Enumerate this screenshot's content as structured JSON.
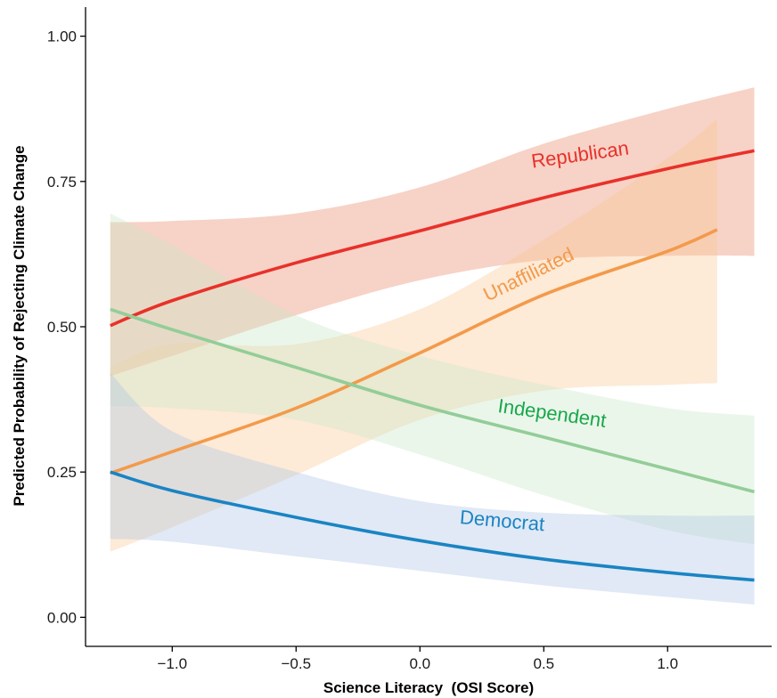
{
  "chart_data": {
    "type": "line",
    "xlabel": "Science Literacy  (OSI Score)",
    "ylabel": "Predicted Probability of Rejecting Climate Change",
    "xlim": [
      -1.35,
      1.42
    ],
    "ylim": [
      -0.05,
      1.05
    ],
    "x_ticks": [
      {
        "value": -1.0,
        "label": "−1.0"
      },
      {
        "value": -0.5,
        "label": "−0.5"
      },
      {
        "value": 0.0,
        "label": "0.0"
      },
      {
        "value": 0.5,
        "label": "0.5"
      },
      {
        "value": 1.0,
        "label": "1.0"
      }
    ],
    "y_ticks": [
      {
        "value": 0.0,
        "label": "0.00"
      },
      {
        "value": 0.25,
        "label": "0.25"
      },
      {
        "value": 0.5,
        "label": "0.50"
      },
      {
        "value": 0.75,
        "label": "0.75"
      },
      {
        "value": 1.0,
        "label": "1.00"
      }
    ],
    "grid": false,
    "legend": "none (series labeled directly on lines)",
    "series": [
      {
        "name": "Republican",
        "color": "#e8312a",
        "band_color": "#e98a6a",
        "label_color": "#e8312a",
        "label_at": [
          0.65,
          0.785
        ],
        "label_angle": -8,
        "x": [
          -1.25,
          -1.0,
          -0.5,
          0.0,
          0.5,
          1.0,
          1.35
        ],
        "y": [
          0.502,
          0.545,
          0.61,
          0.665,
          0.722,
          0.772,
          0.803
        ],
        "lower": [
          0.415,
          0.45,
          0.52,
          0.58,
          0.615,
          0.622,
          0.622
        ],
        "upper": [
          0.68,
          0.682,
          0.695,
          0.74,
          0.815,
          0.875,
          0.912
        ]
      },
      {
        "name": "Unaffiliated",
        "color": "#f39a4a",
        "band_color": "#fbc796",
        "label_color": "#f39a4a",
        "label_at": [
          0.45,
          0.58
        ],
        "label_angle": -26,
        "x": [
          -1.25,
          -1.0,
          -0.5,
          0.0,
          0.5,
          1.0,
          1.2
        ],
        "y": [
          0.248,
          0.285,
          0.36,
          0.455,
          0.555,
          0.63,
          0.667
        ],
        "lower": [
          0.113,
          0.155,
          0.245,
          0.34,
          0.39,
          0.4,
          0.403
        ],
        "upper": [
          0.43,
          0.47,
          0.47,
          0.53,
          0.65,
          0.79,
          0.858
        ]
      },
      {
        "name": "Independent",
        "color": "#93cd98",
        "band_color": "#cbe8c9",
        "label_color": "#17a84b",
        "label_at": [
          0.53,
          0.34
        ],
        "label_angle": 8,
        "x": [
          -1.25,
          -1.0,
          -0.5,
          0.0,
          0.5,
          1.0,
          1.35
        ],
        "y": [
          0.53,
          0.495,
          0.43,
          0.365,
          0.31,
          0.255,
          0.216
        ],
        "lower": [
          0.363,
          0.36,
          0.34,
          0.28,
          0.21,
          0.15,
          0.126
        ],
        "upper": [
          0.695,
          0.64,
          0.52,
          0.45,
          0.4,
          0.36,
          0.347
        ]
      },
      {
        "name": "Democrat",
        "color": "#1a84c3",
        "band_color": "#aec5e6",
        "label_color": "#1a84c3",
        "label_at": [
          0.33,
          0.155
        ],
        "label_angle": 5,
        "x": [
          -1.25,
          -1.0,
          -0.5,
          0.0,
          0.5,
          1.0,
          1.35
        ],
        "y": [
          0.25,
          0.218,
          0.172,
          0.132,
          0.1,
          0.077,
          0.064
        ],
        "lower": [
          0.135,
          0.13,
          0.105,
          0.08,
          0.055,
          0.035,
          0.022
        ],
        "upper": [
          0.42,
          0.32,
          0.25,
          0.2,
          0.18,
          0.175,
          0.175
        ]
      }
    ]
  }
}
